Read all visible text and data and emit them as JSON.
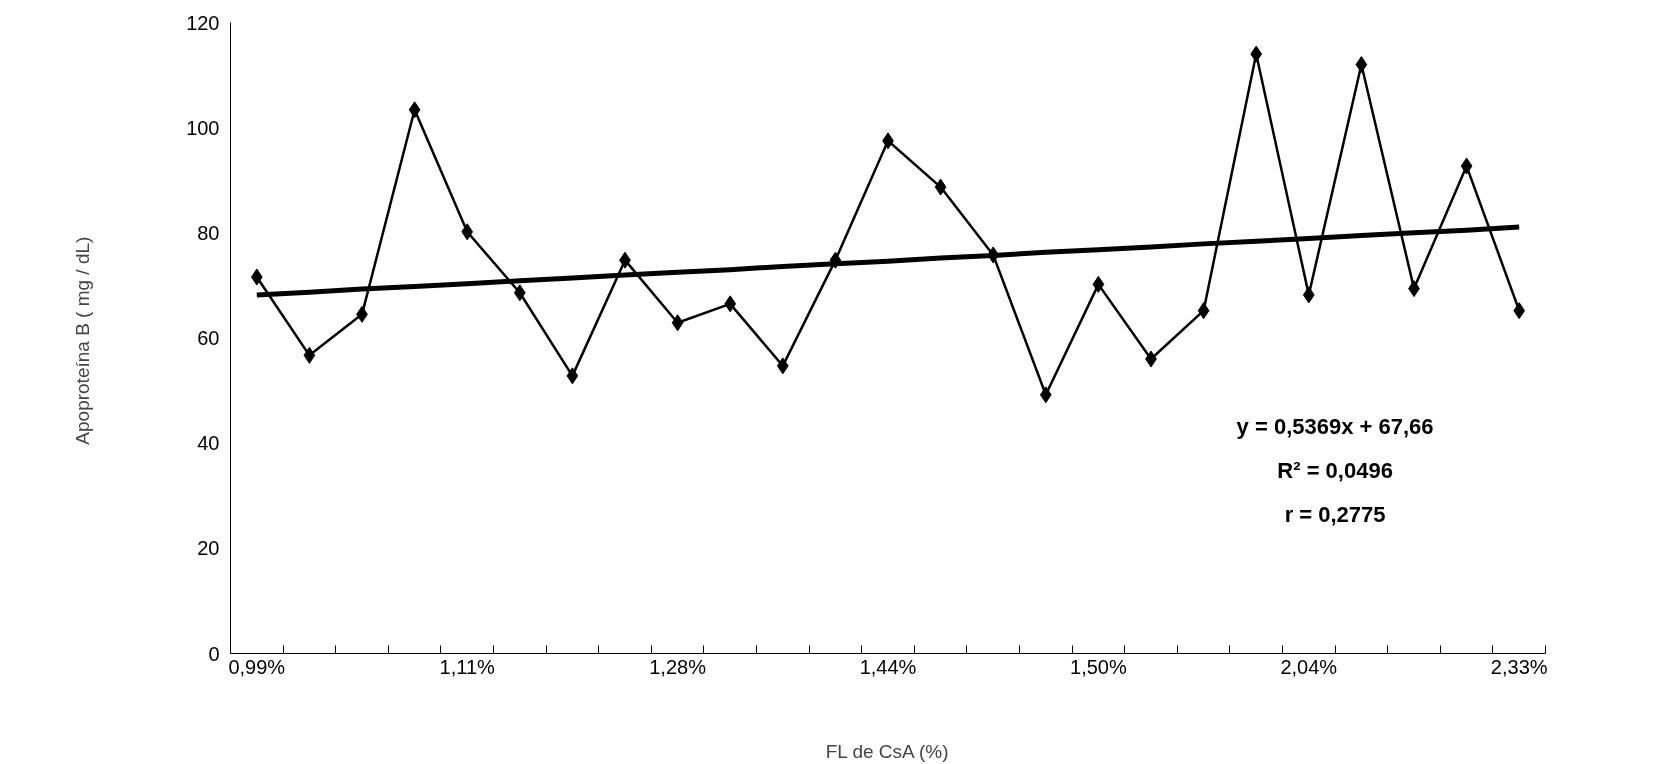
{
  "chart_data": {
    "type": "line",
    "xlabel": "FL de CsA (%)",
    "ylabel": "Apoproteína B  ( mg / dL)",
    "categories": [
      "0,99%",
      null,
      null,
      null,
      "1,11%",
      null,
      null,
      null,
      "1,28%",
      null,
      null,
      null,
      "1,44%",
      null,
      null,
      null,
      "1,50%",
      null,
      null,
      null,
      "2,04%",
      null,
      null,
      null,
      "2,33%"
    ],
    "series": [
      {
        "color": "#000000",
        "values": [
          71.6,
          56.7,
          64.5,
          103.4,
          80.2,
          68.6,
          52.8,
          74.8,
          62.9,
          66.5,
          54.7,
          74.8,
          97.5,
          88.7,
          75.8,
          49.2,
          70.2,
          56,
          65.2,
          114,
          68.2,
          112,
          69.4,
          92.7,
          65.2
        ]
      },
      {
        "color": "#000000",
        "type": "line",
        "marker": "none",
        "values": [
          68.2,
          68.7,
          69.3,
          69.8,
          70.3,
          70.9,
          71.4,
          72.0,
          72.5,
          73.0,
          73.6,
          74.1,
          74.6,
          75.2,
          75.7,
          76.3,
          76.8,
          77.3,
          77.9,
          78.4,
          78.9,
          79.5,
          80.0,
          80.5,
          81.1
        ]
      }
    ],
    "annotations": [
      "y = 0,5369x + 67,66",
      "R² = 0,0496",
      "r = 0,2775"
    ],
    "ylim": [
      0,
      120
    ],
    "yticks": [
      0,
      20,
      40,
      60,
      80,
      100,
      120
    ],
    "marker": "diamond",
    "grid": false
  }
}
